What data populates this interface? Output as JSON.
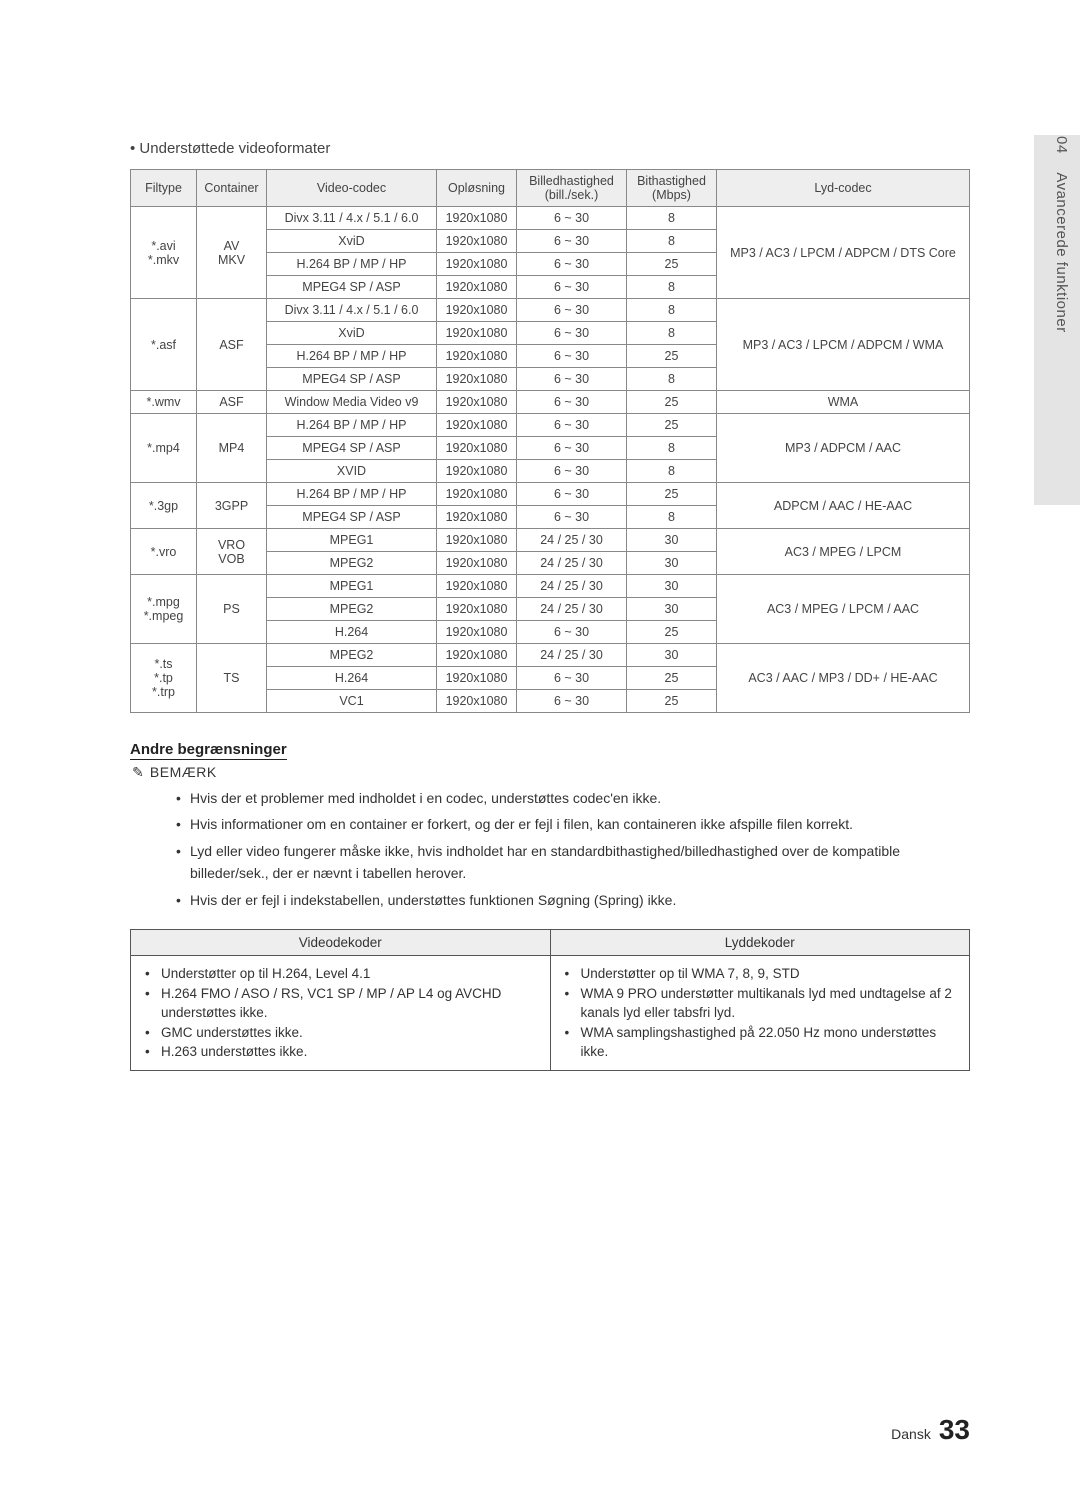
{
  "sidebar": {
    "chapter_num": "04",
    "chapter_title": "Avancerede funktioner"
  },
  "section_intro": "Understøttede videoformater",
  "fmt_headers": [
    "Filtype",
    "Container",
    "Video-codec",
    "Opløsning",
    "Billedhastighed (bill./sek.)",
    "Bithastighed (Mbps)",
    "Lyd-codec"
  ],
  "fmt_groups": [
    {
      "filetype": "*.avi\n*.mkv",
      "container": "AV\nMKV",
      "audio": "MP3 / AC3 / LPCM / ADPCM / DTS Core",
      "rows": [
        {
          "vc": "Divx 3.11 / 4.x / 5.1 / 6.0",
          "res": "1920x1080",
          "fps": "6 ~ 30",
          "mbps": "8"
        },
        {
          "vc": "XviD",
          "res": "1920x1080",
          "fps": "6 ~ 30",
          "mbps": "8"
        },
        {
          "vc": "H.264 BP / MP / HP",
          "res": "1920x1080",
          "fps": "6 ~ 30",
          "mbps": "25"
        },
        {
          "vc": "MPEG4 SP / ASP",
          "res": "1920x1080",
          "fps": "6 ~ 30",
          "mbps": "8"
        }
      ]
    },
    {
      "filetype": "*.asf",
      "container": "ASF",
      "audio": "MP3 / AC3 / LPCM / ADPCM / WMA",
      "rows": [
        {
          "vc": "Divx 3.11 / 4.x / 5.1 / 6.0",
          "res": "1920x1080",
          "fps": "6 ~ 30",
          "mbps": "8"
        },
        {
          "vc": "XviD",
          "res": "1920x1080",
          "fps": "6 ~ 30",
          "mbps": "8"
        },
        {
          "vc": "H.264 BP / MP / HP",
          "res": "1920x1080",
          "fps": "6 ~ 30",
          "mbps": "25"
        },
        {
          "vc": "MPEG4 SP / ASP",
          "res": "1920x1080",
          "fps": "6 ~ 30",
          "mbps": "8"
        }
      ]
    },
    {
      "filetype": "*.wmv",
      "container": "ASF",
      "audio": "WMA",
      "rows": [
        {
          "vc": "Window Media Video v9",
          "res": "1920x1080",
          "fps": "6 ~ 30",
          "mbps": "25"
        }
      ]
    },
    {
      "filetype": "*.mp4",
      "container": "MP4",
      "audio": "MP3 / ADPCM / AAC",
      "rows": [
        {
          "vc": "H.264 BP / MP / HP",
          "res": "1920x1080",
          "fps": "6 ~ 30",
          "mbps": "25"
        },
        {
          "vc": "MPEG4 SP / ASP",
          "res": "1920x1080",
          "fps": "6 ~ 30",
          "mbps": "8"
        },
        {
          "vc": "XVID",
          "res": "1920x1080",
          "fps": "6 ~ 30",
          "mbps": "8"
        }
      ]
    },
    {
      "filetype": "*.3gp",
      "container": "3GPP",
      "audio": "ADPCM / AAC / HE-AAC",
      "rows": [
        {
          "vc": "H.264 BP / MP / HP",
          "res": "1920x1080",
          "fps": "6 ~ 30",
          "mbps": "25"
        },
        {
          "vc": "MPEG4 SP / ASP",
          "res": "1920x1080",
          "fps": "6 ~ 30",
          "mbps": "8"
        }
      ]
    },
    {
      "filetype": "*.vro",
      "container": "VRO\nVOB",
      "audio": "AC3 / MPEG / LPCM",
      "rows": [
        {
          "vc": "MPEG1",
          "res": "1920x1080",
          "fps": "24 / 25 / 30",
          "mbps": "30"
        },
        {
          "vc": "MPEG2",
          "res": "1920x1080",
          "fps": "24 / 25 / 30",
          "mbps": "30"
        }
      ]
    },
    {
      "filetype": "*.mpg\n*.mpeg",
      "container": "PS",
      "audio": "AC3 / MPEG / LPCM / AAC",
      "rows": [
        {
          "vc": "MPEG1",
          "res": "1920x1080",
          "fps": "24 / 25 / 30",
          "mbps": "30"
        },
        {
          "vc": "MPEG2",
          "res": "1920x1080",
          "fps": "24 / 25 / 30",
          "mbps": "30"
        },
        {
          "vc": "H.264",
          "res": "1920x1080",
          "fps": "6 ~ 30",
          "mbps": "25"
        }
      ]
    },
    {
      "filetype": "*.ts\n*.tp\n*.trp",
      "container": "TS",
      "audio": "AC3 / AAC / MP3 / DD+ / HE-AAC",
      "rows": [
        {
          "vc": "MPEG2",
          "res": "1920x1080",
          "fps": "24 / 25 / 30",
          "mbps": "30"
        },
        {
          "vc": "H.264",
          "res": "1920x1080",
          "fps": "6 ~ 30",
          "mbps": "25"
        },
        {
          "vc": "VC1",
          "res": "1920x1080",
          "fps": "6 ~ 30",
          "mbps": "25"
        }
      ]
    }
  ],
  "subhead": "Andre begrænsninger",
  "note_label": "BEMÆRK",
  "note_icon": "✎",
  "notes": [
    "Hvis der et problemer med indholdet i en codec, understøttes codec'en ikke.",
    "Hvis informationer om en container er forkert, og der er fejl i filen, kan containeren ikke afspille filen korrekt.",
    "Lyd eller video fungerer måske ikke, hvis indholdet har en standardbithastighed/billedhastighed over de kompatible billeder/sek., der er nævnt i tabellen herover.",
    "Hvis der er fejl i indekstabellen, understøttes funktionen Søgning (Spring) ikke."
  ],
  "dec_headers": [
    "Videodekoder",
    "Lyddekoder"
  ],
  "video_dec": [
    "Understøtter op til H.264, Level 4.1",
    "H.264 FMO / ASO / RS, VC1 SP / MP / AP L4 og AVCHD understøttes ikke.",
    "GMC understøttes ikke.",
    "H.263 understøttes ikke."
  ],
  "audio_dec": [
    "Understøtter op til WMA 7, 8, 9, STD",
    "WMA 9 PRO understøtter multikanals lyd med undtagelse af 2 kanals lyd eller tabsfri lyd.",
    "WMA samplingshastighed på 22.050 Hz mono understøttes ikke."
  ],
  "footer": {
    "lang": "Dansk",
    "page": "33"
  }
}
